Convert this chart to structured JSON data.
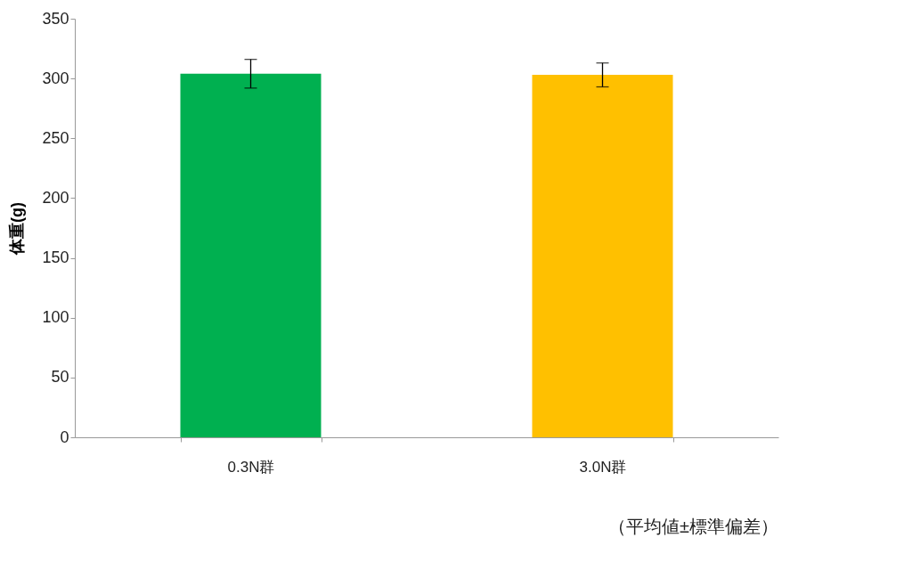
{
  "chart_data": {
    "type": "bar",
    "ylabel": "体重(g)",
    "categories": [
      "0.3N群",
      "3.0N群"
    ],
    "values": [
      304,
      303
    ],
    "colors": [
      "#00b050",
      "#ffc000"
    ],
    "errors": [
      12,
      10
    ],
    "ylim": [
      0,
      350
    ],
    "yticks": [
      0,
      50,
      100,
      150,
      200,
      250,
      300,
      350
    ],
    "grid": false,
    "annotations": [
      "（平均値±標準偏差）"
    ]
  }
}
